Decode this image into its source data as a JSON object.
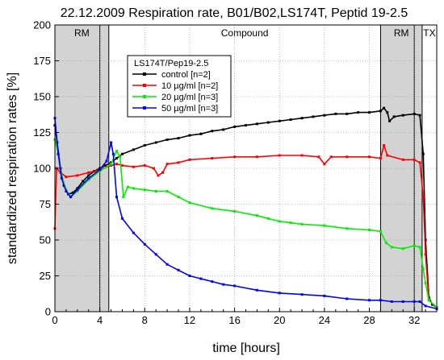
{
  "chart_data": {
    "type": "line",
    "title": "22.12.2009 Respiration rate, B01/B02,LS174T, Peptid 19-2.5",
    "xlabel": "time [hours]",
    "ylabel": "standardized respiration rates [%]",
    "xlim": [
      0,
      34
    ],
    "ylim": [
      0,
      200
    ],
    "x_ticks": [
      0,
      4,
      8,
      12,
      16,
      20,
      24,
      28,
      32
    ],
    "y_ticks": [
      0,
      25,
      50,
      75,
      100,
      125,
      150,
      175,
      200
    ],
    "grid": true,
    "regions": [
      {
        "label": "RM",
        "x_start": 0,
        "x_end": 4.8,
        "shaded": true
      },
      {
        "label": "Compound",
        "x_start": 4.8,
        "x_end": 29,
        "shaded": false
      },
      {
        "label": "RM",
        "x_start": 29,
        "x_end": 32.7,
        "shaded": true
      },
      {
        "label": "TX",
        "x_start": 32.7,
        "x_end": 34,
        "shaded": false
      }
    ],
    "region_dividers": [
      4,
      32
    ],
    "legend": {
      "title": "LS174T/Pep19-2.5",
      "placement": "top-left"
    },
    "series": [
      {
        "name": "control [n=2]",
        "color": "#000000",
        "points": [
          [
            0,
            130
          ],
          [
            0.2,
            118
          ],
          [
            0.5,
            100
          ],
          [
            0.8,
            88
          ],
          [
            1.2,
            82
          ],
          [
            1.6,
            83
          ],
          [
            2,
            86
          ],
          [
            2.5,
            91
          ],
          [
            3,
            95
          ],
          [
            3.5,
            98
          ],
          [
            4,
            100
          ],
          [
            4.5,
            102
          ],
          [
            5,
            104
          ],
          [
            5.5,
            107
          ],
          [
            6,
            110
          ],
          [
            7,
            113
          ],
          [
            8,
            116
          ],
          [
            9,
            118
          ],
          [
            10,
            120
          ],
          [
            11,
            121
          ],
          [
            12,
            123
          ],
          [
            13,
            124
          ],
          [
            14,
            126
          ],
          [
            15,
            127
          ],
          [
            16,
            129
          ],
          [
            17,
            130
          ],
          [
            18,
            131
          ],
          [
            19,
            132
          ],
          [
            20,
            133
          ],
          [
            21,
            134
          ],
          [
            22,
            135
          ],
          [
            23,
            136
          ],
          [
            24,
            137
          ],
          [
            25,
            138
          ],
          [
            26,
            138
          ],
          [
            27,
            139
          ],
          [
            28,
            139
          ],
          [
            29,
            140
          ],
          [
            29.3,
            142
          ],
          [
            29.6,
            139
          ],
          [
            29.8,
            133
          ],
          [
            30.2,
            136
          ],
          [
            31,
            137
          ],
          [
            32,
            138
          ],
          [
            32.5,
            137
          ],
          [
            32.8,
            110
          ],
          [
            33,
            50
          ],
          [
            33.3,
            10
          ],
          [
            33.6,
            5
          ],
          [
            34,
            3
          ]
        ]
      },
      {
        "name": "10 µg/ml [n=2]",
        "color": "#ff0000",
        "points": [
          [
            0,
            58
          ],
          [
            0.15,
            100
          ],
          [
            0.5,
            97
          ],
          [
            1,
            94
          ],
          [
            2,
            95
          ],
          [
            3,
            97
          ],
          [
            4,
            99
          ],
          [
            5,
            102
          ],
          [
            5.5,
            103
          ],
          [
            6,
            102
          ],
          [
            7,
            101
          ],
          [
            8,
            102
          ],
          [
            8.8,
            100
          ],
          [
            9.2,
            95
          ],
          [
            9.6,
            97
          ],
          [
            10,
            103
          ],
          [
            11,
            104
          ],
          [
            12,
            106
          ],
          [
            14,
            107
          ],
          [
            16,
            108
          ],
          [
            18,
            108
          ],
          [
            20,
            109
          ],
          [
            22,
            109
          ],
          [
            23.5,
            108
          ],
          [
            24,
            103
          ],
          [
            24.6,
            108
          ],
          [
            26,
            108
          ],
          [
            28,
            108
          ],
          [
            29,
            107
          ],
          [
            29.3,
            116
          ],
          [
            29.6,
            109
          ],
          [
            31,
            106
          ],
          [
            32,
            106
          ],
          [
            32.5,
            104
          ],
          [
            32.8,
            80
          ],
          [
            33,
            40
          ],
          [
            33.3,
            8
          ],
          [
            34,
            3
          ]
        ]
      },
      {
        "name": "20 µg/ml [n=3]",
        "color": "#00ee00",
        "points": [
          [
            0,
            120
          ],
          [
            0.3,
            110
          ],
          [
            0.6,
            95
          ],
          [
            1,
            85
          ],
          [
            1.4,
            80
          ],
          [
            2,
            84
          ],
          [
            3,
            92
          ],
          [
            4,
            98
          ],
          [
            5,
            103
          ],
          [
            5.5,
            112
          ],
          [
            5.8,
            108
          ],
          [
            6.1,
            80
          ],
          [
            6.5,
            87
          ],
          [
            7,
            86
          ],
          [
            8,
            85
          ],
          [
            9,
            84
          ],
          [
            10,
            84
          ],
          [
            11,
            80
          ],
          [
            12,
            76
          ],
          [
            14,
            72
          ],
          [
            16,
            70
          ],
          [
            18,
            67
          ],
          [
            19,
            65
          ],
          [
            20,
            63
          ],
          [
            21,
            62
          ],
          [
            22,
            61
          ],
          [
            24,
            60
          ],
          [
            26,
            58
          ],
          [
            28,
            57
          ],
          [
            29,
            56
          ],
          [
            29.5,
            48
          ],
          [
            30,
            45
          ],
          [
            31,
            44
          ],
          [
            32,
            46
          ],
          [
            32.5,
            45
          ],
          [
            32.8,
            30
          ],
          [
            33,
            20
          ],
          [
            33.3,
            8
          ],
          [
            34,
            3
          ]
        ]
      },
      {
        "name": "50 µg/ml [n=3]",
        "color": "#0000ff",
        "points": [
          [
            0,
            135
          ],
          [
            0.3,
            110
          ],
          [
            0.6,
            93
          ],
          [
            1,
            84
          ],
          [
            1.4,
            80
          ],
          [
            2,
            85
          ],
          [
            3,
            93
          ],
          [
            4,
            99
          ],
          [
            4.6,
            105
          ],
          [
            5,
            118
          ],
          [
            5.2,
            110
          ],
          [
            5.5,
            80
          ],
          [
            6,
            65
          ],
          [
            7,
            55
          ],
          [
            8,
            47
          ],
          [
            9,
            40
          ],
          [
            10,
            33
          ],
          [
            11,
            29
          ],
          [
            12,
            25
          ],
          [
            13,
            23
          ],
          [
            14,
            21
          ],
          [
            15,
            19
          ],
          [
            16,
            18
          ],
          [
            18,
            15
          ],
          [
            20,
            13
          ],
          [
            22,
            12
          ],
          [
            24,
            11
          ],
          [
            26,
            9
          ],
          [
            28,
            8
          ],
          [
            29,
            8
          ],
          [
            30,
            7
          ],
          [
            31,
            7
          ],
          [
            32,
            7
          ],
          [
            32.5,
            7
          ],
          [
            33,
            4
          ],
          [
            34,
            2
          ]
        ]
      }
    ]
  }
}
